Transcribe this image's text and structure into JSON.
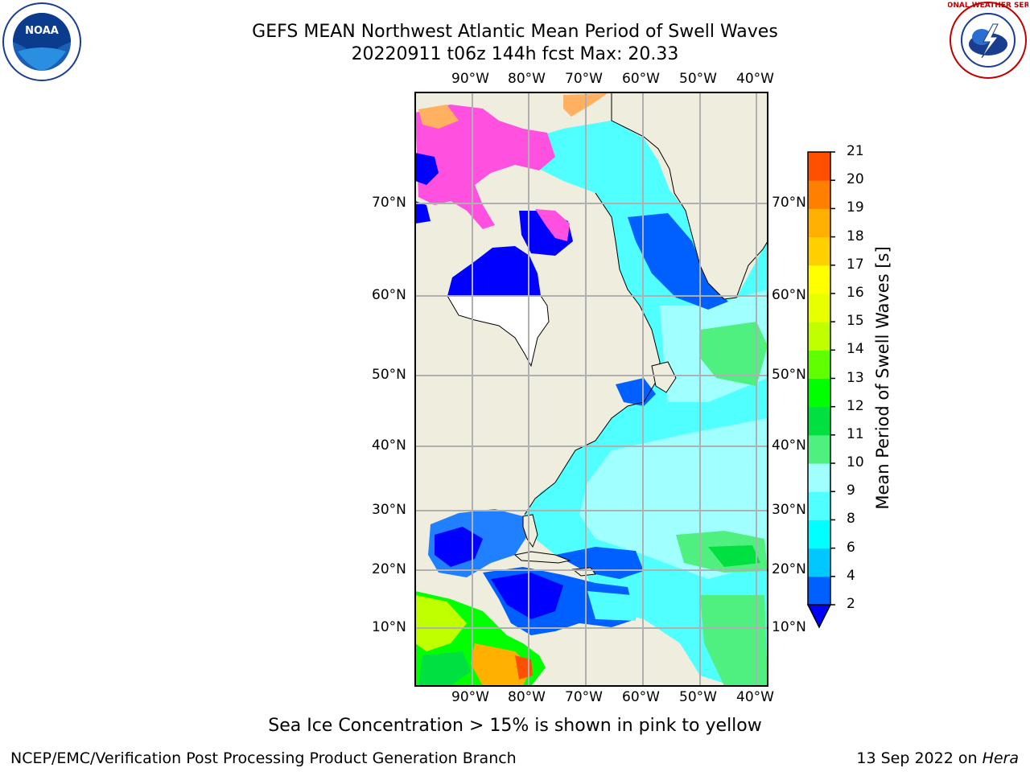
{
  "header": {
    "title_line1": "GEFS MEAN Northwest Atlantic Mean Period of Swell Waves",
    "title_line2": "20220911 t06z 144h fcst   Max: 20.33"
  },
  "logos": {
    "left_name": "NOAA",
    "right_text": "NATIONAL WEATHER SERVICE"
  },
  "map": {
    "lon_labels": [
      "90°W",
      "80°W",
      "70°W",
      "60°W",
      "50°W",
      "40°W"
    ],
    "lat_labels": [
      "70°N",
      "60°N",
      "50°N",
      "40°N",
      "30°N",
      "20°N",
      "10°N"
    ]
  },
  "colorbar": {
    "label": "Mean Period of Swell Waves [s]",
    "ticks": [
      "2",
      "4",
      "6",
      "8",
      "9",
      "10",
      "11",
      "12",
      "13",
      "14",
      "15",
      "16",
      "17",
      "18",
      "19",
      "20",
      "21"
    ],
    "colors": [
      "#0060ff",
      "#00c8ff",
      "#00ffff",
      "#50ffff",
      "#a0ffff",
      "#50f080",
      "#00e040",
      "#00ff00",
      "#60ff00",
      "#c0ff00",
      "#e8ff00",
      "#ffff00",
      "#ffd000",
      "#ffb000",
      "#ff8000",
      "#ff5000",
      "#ff2000",
      "#ff0000"
    ],
    "under_color": "#0000ff"
  },
  "notes": {
    "sea_ice": "Sea Ice Concentration > 15% is shown in pink to yellow"
  },
  "footer": {
    "left": "NCEP/EMC/Verification Post Processing Product Generation Branch",
    "right_prefix": "13 Sep 2022 on ",
    "right_italic": "Hera"
  }
}
